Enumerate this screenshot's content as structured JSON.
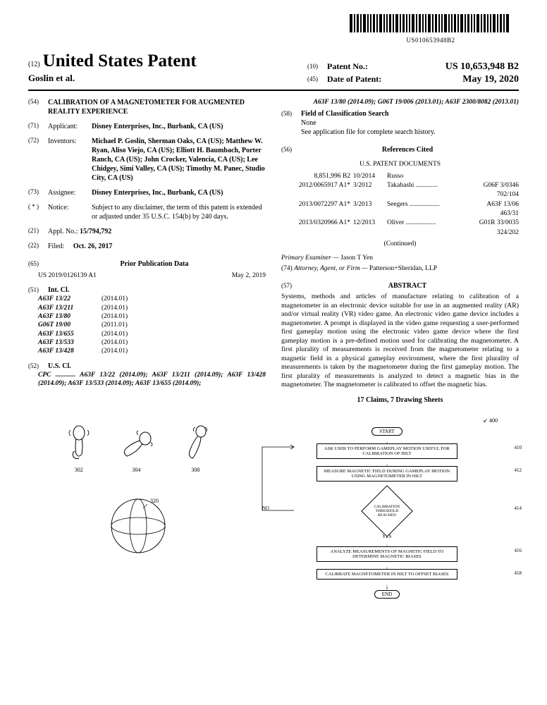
{
  "barcode_text": "US010653948B2",
  "header": {
    "doc_prefix": "(12)",
    "title": "United States Patent",
    "inventors_line": "Goslin et al.",
    "patent_no_prefix": "(10)",
    "patent_no_label": "Patent No.:",
    "patent_no_value": "US 10,653,948 B2",
    "date_prefix": "(45)",
    "date_label": "Date of Patent:",
    "date_value": "May 19, 2020"
  },
  "left": {
    "f54_num": "(54)",
    "f54_title": "CALIBRATION OF A MAGNETOMETER FOR AUGMENTED REALITY EXPERIENCE",
    "f71_num": "(71)",
    "f71_label": "Applicant:",
    "f71_body": "Disney Enterprises, Inc., Burbank, CA (US)",
    "f72_num": "(72)",
    "f72_label": "Inventors:",
    "f72_body": "Michael P. Goslin, Sherman Oaks, CA (US); Matthew W. Ryan, Aliso Viejo, CA (US); Elliott H. Baumbach, Porter Ranch, CA (US); John Crocker, Valencia, CA (US); Lee Chidgey, Simi Valley, CA (US); Timothy M. Panec, Studio City, CA (US)",
    "f73_num": "(73)",
    "f73_label": "Assignee:",
    "f73_body": "Disney Enterprises, Inc., Burbank, CA (US)",
    "fstar_num": "( * )",
    "fstar_label": "Notice:",
    "fstar_body": "Subject to any disclaimer, the term of this patent is extended or adjusted under 35 U.S.C. 154(b) by 240 days.",
    "f21_num": "(21)",
    "f21_label": "Appl. No.:",
    "f21_body": "15/794,792",
    "f22_num": "(22)",
    "f22_label": "Filed:",
    "f22_body": "Oct. 26, 2017",
    "f65_num": "(65)",
    "f65_head": "Prior Publication Data",
    "f65_pub": "US 2019/0126139 A1",
    "f65_date": "May 2, 2019",
    "f51_num": "(51)",
    "f51_label": "Int. Cl.",
    "intcl": [
      {
        "code": "A63F 13/22",
        "date": "(2014.01)"
      },
      {
        "code": "A63F 13/211",
        "date": "(2014.01)"
      },
      {
        "code": "A63F 13/80",
        "date": "(2014.01)"
      },
      {
        "code": "G06T 19/00",
        "date": "(2011.01)"
      },
      {
        "code": "A63F 13/655",
        "date": "(2014.01)"
      },
      {
        "code": "A63F 13/533",
        "date": "(2014.01)"
      },
      {
        "code": "A63F 13/428",
        "date": "(2014.01)"
      }
    ],
    "f52_num": "(52)",
    "f52_label": "U.S. Cl.",
    "f52_body": "CPC ............ A63F 13/22 (2014.09); A63F 13/211 (2014.09); A63F 13/428 (2014.09); A63F 13/533 (2014.09); A63F 13/655 (2014.09);"
  },
  "right": {
    "cpc_cont": "A63F 13/80 (2014.09); G06T 19/006 (2013.01); A63F 2300/8082 (2013.01)",
    "f58_num": "(58)",
    "f58_label": "Field of Classification Search",
    "f58_body1": "None",
    "f58_body2": "See application file for complete search history.",
    "f56_num": "(56)",
    "f56_head": "References Cited",
    "f56_sub": "U.S. PATENT DOCUMENTS",
    "refs": [
      {
        "c1": "8,851,996 B2",
        "c2": "10/2014",
        "c3": "Russo",
        "c4": ""
      },
      {
        "c1": "2012/0065917 A1*",
        "c2": "3/2012",
        "c3": "Takahashi .............",
        "c4": "G06F 3/0346"
      },
      {
        "c1": "",
        "c2": "",
        "c3": "",
        "c4": "702/104"
      },
      {
        "c1": "2013/0072297 A1*",
        "c2": "3/2013",
        "c3": "Seegers ..................",
        "c4": "A63F 13/06"
      },
      {
        "c1": "",
        "c2": "",
        "c3": "",
        "c4": "463/31"
      },
      {
        "c1": "2013/0320966 A1*",
        "c2": "12/2013",
        "c3": "Oliver ..................",
        "c4": "G01R 33/0035"
      },
      {
        "c1": "",
        "c2": "",
        "c3": "",
        "c4": "324/202"
      }
    ],
    "continued": "(Continued)",
    "examiner_label": "Primary Examiner —",
    "examiner": "Jason T Yen",
    "attorney_num": "(74)",
    "attorney_label": "Attorney, Agent, or Firm —",
    "attorney": "Patterson+Sheridan, LLP",
    "f57_num": "(57)",
    "abstract_head": "ABSTRACT",
    "abstract": "Systems, methods and articles of manufacture relating to calibration of a magnetometer in an electronic device suitable for use in an augmented reality (AR) and/or virtual reality (VR) video game. An electronic video game device includes a magnetometer. A prompt is displayed in the video game requesting a user-performed first gameplay motion using the electronic video game device where the first gameplay motion is a pre-defined motion used for calibrating the magnetometer. A first plurality of measurements is received from the magnetometer relating to a magnetic field in a physical gameplay environment, where the first plurality of measurements is taken by the magnetometer during the first gameplay motion. The first plurality of measurements is analyzed to detect a magnetic bias in the magnetometer. The magnetometer is calibrated to offset the magnetic bias.",
    "claims_line": "17 Claims, 7 Drawing Sheets"
  },
  "flowchart": {
    "ref": "400",
    "start": "START",
    "s1": "ASK USER TO PERFORM GAMEPLAY MOTION USEFUL FOR CALIBRATION OF HILT",
    "s1n": "410",
    "s2": "MEASURE MAGNETIC FIELD DURING GAMEPLAY MOTION USING MAGNETOMETER IN HILT",
    "s2n": "412",
    "d1": "CALIBRATION THRESHOLD REACHED",
    "d1n": "414",
    "no": "NO",
    "yes": "YES",
    "s3": "ANALYZE MEASUREMENTS OF MAGNETIC FIELD TO DETERMINE MAGNETIC BIASES",
    "s3n": "416",
    "s4": "CALIBRATE MAGNETOMETER IN HILT TO OFFSET BIASES",
    "s4n": "418",
    "end": "END"
  },
  "fig_left": {
    "n1": "302",
    "n2": "304",
    "n3": "308",
    "n4": "320"
  }
}
